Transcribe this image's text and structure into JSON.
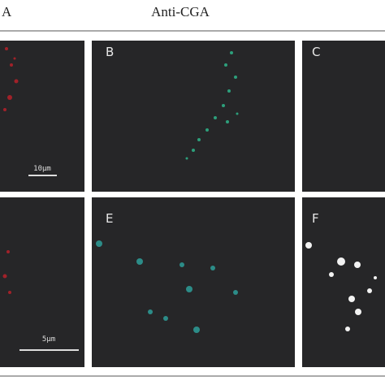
{
  "header": {
    "left_label": "A",
    "title": "Anti-CGA"
  },
  "panel_labels": [
    "B",
    "C",
    "E",
    "F"
  ],
  "scale_bars": [
    "10μm",
    "5μm"
  ]
}
